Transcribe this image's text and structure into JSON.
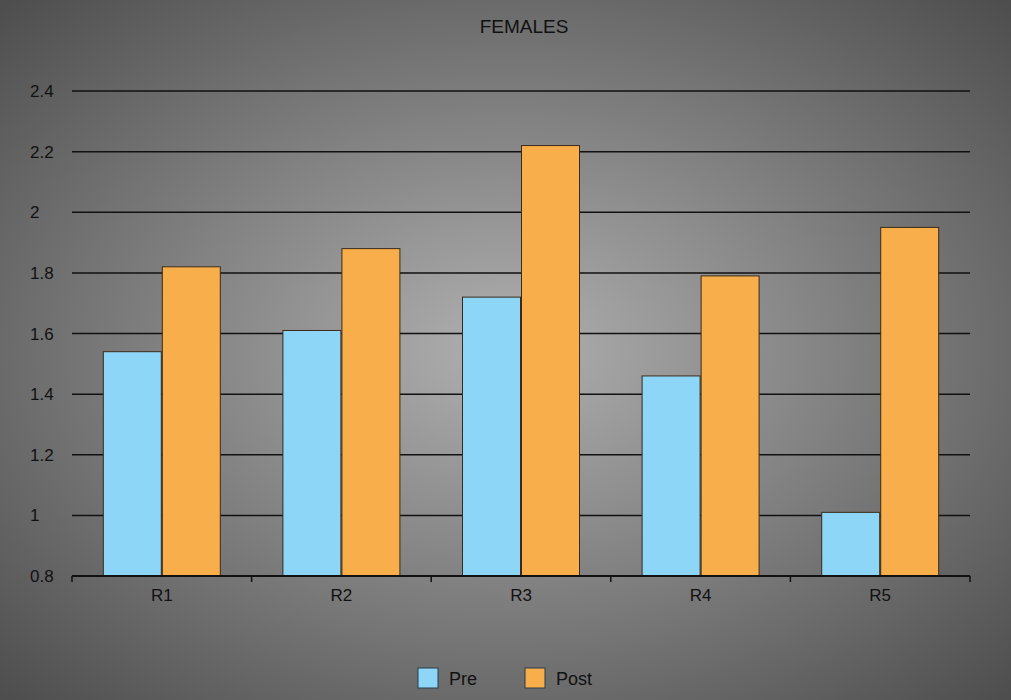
{
  "chart_data": {
    "type": "bar",
    "title": "FEMALES",
    "categories": [
      "R1",
      "R2",
      "R3",
      "R4",
      "R5"
    ],
    "series": [
      {
        "name": "Pre",
        "color": "#8dd6f7",
        "values": [
          1.54,
          1.61,
          1.72,
          1.46,
          1.01
        ]
      },
      {
        "name": "Post",
        "color": "#f9ae4c",
        "values": [
          1.82,
          1.88,
          2.22,
          1.79,
          1.95
        ]
      }
    ],
    "ylim": [
      0.8,
      2.4
    ],
    "yticks": [
      0.8,
      1,
      1.2,
      1.4,
      1.6,
      1.8,
      2,
      2.2,
      2.4
    ],
    "grid": true,
    "legend": "bottom"
  }
}
